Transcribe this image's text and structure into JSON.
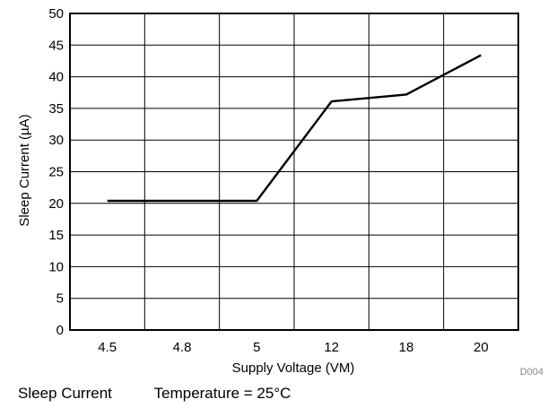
{
  "caption": {
    "title": "Sleep Current",
    "condition": "Temperature = 25°C"
  },
  "figure_id": "D004",
  "chart_data": {
    "type": "line",
    "categories": [
      "4.5",
      "4.8",
      "5",
      "12",
      "18",
      "20"
    ],
    "series": [
      {
        "values": [
          20.4,
          20.4,
          20.4,
          36.1,
          37.2,
          43.4
        ]
      }
    ],
    "xlabel": "Supply Voltage (VM)",
    "ylabel": "Sleep Current (µA)",
    "ylim": [
      0,
      50
    ],
    "yticks": [
      0,
      5,
      10,
      15,
      20,
      25,
      30,
      35,
      40,
      45,
      50
    ],
    "grid": true,
    "line_color": "#000000",
    "grid_color": "#000000"
  }
}
